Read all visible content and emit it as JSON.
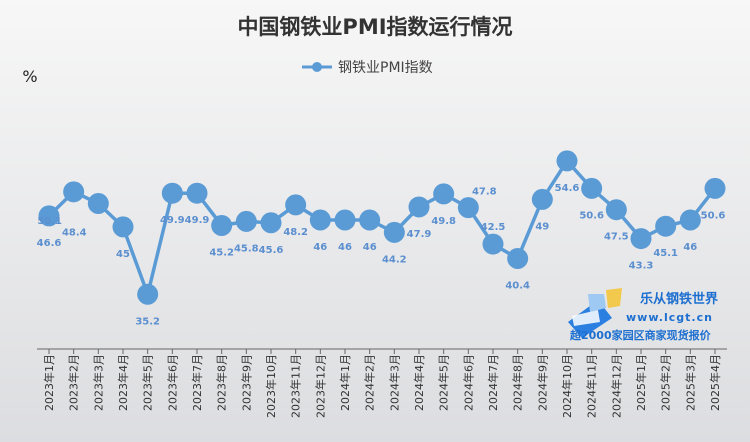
{
  "chart_data": {
    "type": "line",
    "title": "中国钢铁业PMI指数运行情况",
    "ylabel": "%",
    "legend_position": "top",
    "grid": false,
    "line_color": "#5b9bd5",
    "categories": [
      "2023年1月",
      "2023年2月",
      "2023年3月",
      "2023年4月",
      "2023年5月",
      "2023年6月",
      "2023年7月",
      "2023年8月",
      "2023年9月",
      "2023年10月",
      "2023年11月",
      "2023年12月",
      "2024年1月",
      "2024年2月",
      "2024年3月",
      "2024年4月",
      "2024年5月",
      "2024年6月",
      "2024年7月",
      "2024年8月",
      "2024年9月",
      "2024年10月",
      "2024年11月",
      "2024年12月",
      "2025年1月",
      "2025年2月",
      "2025年3月",
      "2025年4月"
    ],
    "series": [
      {
        "name": "钢铁业PMI指数",
        "values": [
          46.6,
          50.1,
          48.4,
          45,
          35.2,
          49.9,
          49.9,
          45.2,
          45.8,
          45.6,
          48.2,
          46,
          46,
          46,
          44.2,
          47.9,
          49.8,
          47.8,
          42.5,
          40.4,
          49,
          54.6,
          50.6,
          47.5,
          43.3,
          45.1,
          46,
          50.6
        ],
        "labels": [
          "46.6",
          "50.1",
          "48.4",
          "45",
          "35.2",
          "49.9",
          "49.9",
          "45.2",
          "45.8",
          "45.6",
          "48.2",
          "46",
          "46",
          "46",
          "44.2",
          "47.9",
          "49.8",
          "47.8",
          "42.5",
          "40.4",
          "49",
          "54.6",
          "50.6",
          "47.5",
          "43.3",
          "45.1",
          "46",
          "50.6"
        ]
      }
    ],
    "ylim": [
      30,
      62
    ]
  },
  "watermark": {
    "name": "乐从钢铁世界",
    "url": "www.lcgt.cn",
    "slogan": "超2000家园区商家现货报价"
  }
}
